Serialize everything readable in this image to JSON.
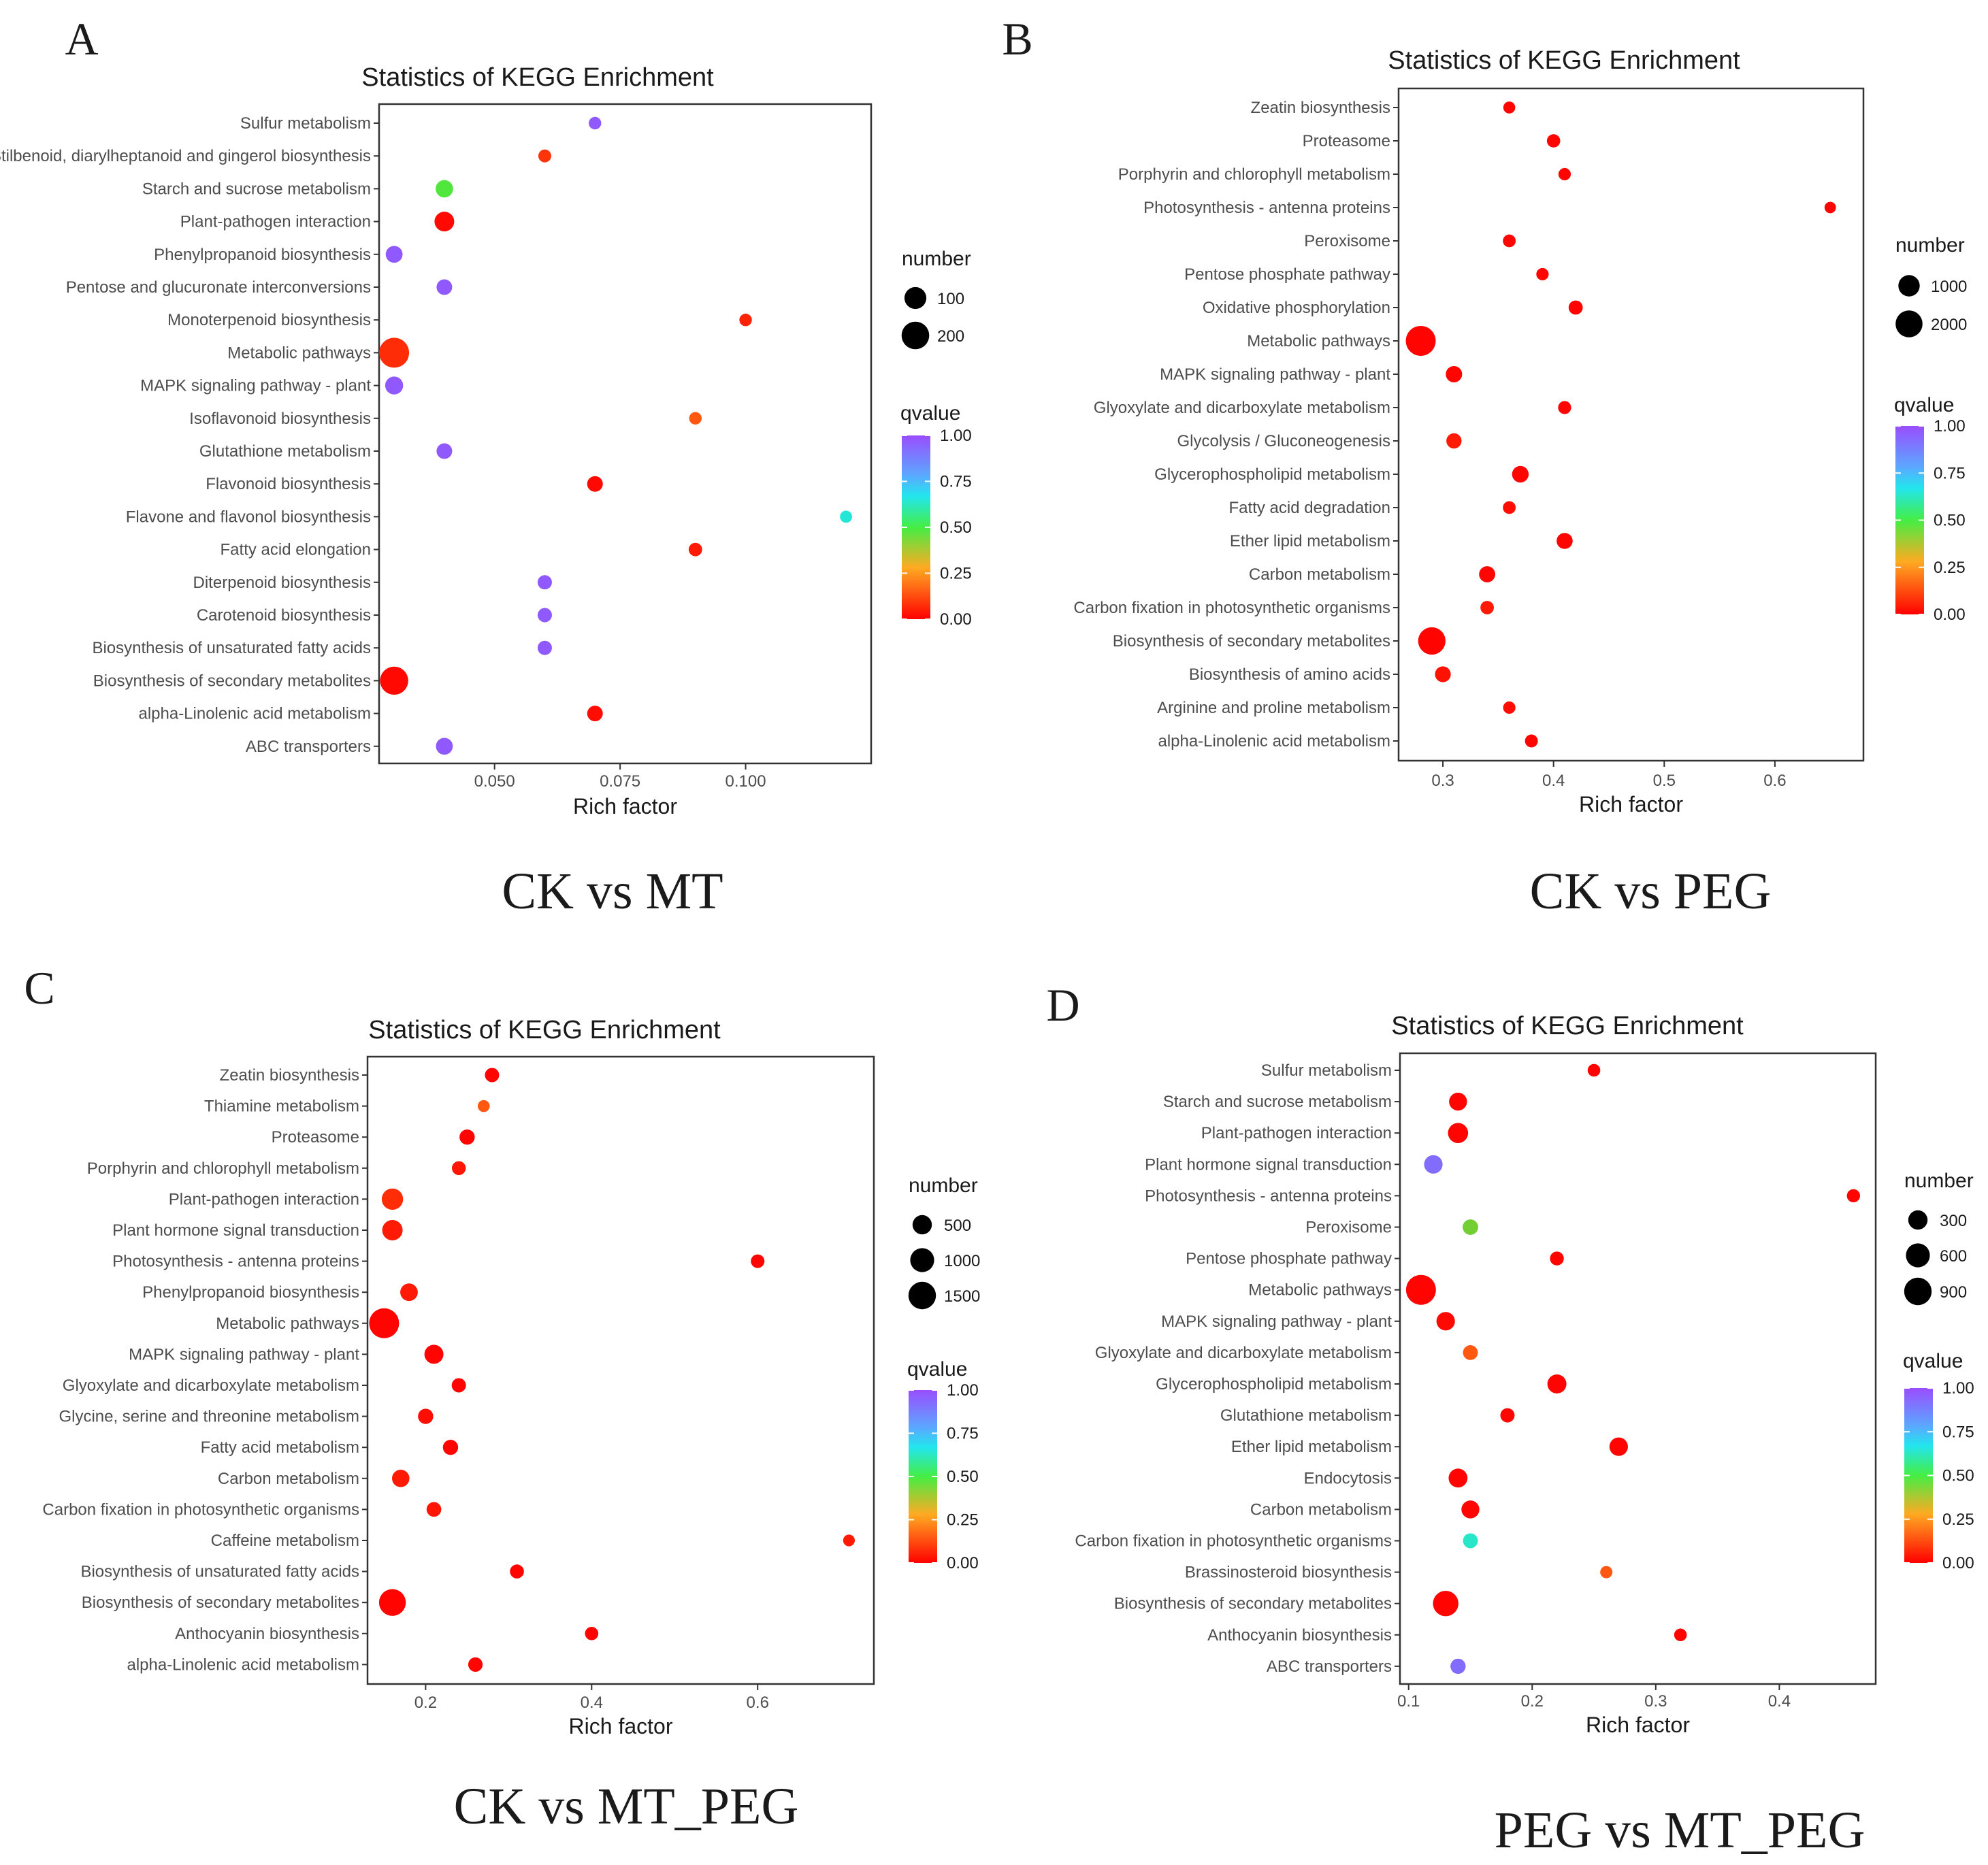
{
  "colors": {
    "low": "#ff0000",
    "high": "#9a4dff",
    "frame": "#333333"
  },
  "chart_data": [
    {
      "type": "scatter",
      "panel": "A",
      "comparison": "CK vs MT",
      "title": "Statistics of KEGG Enrichment",
      "xlabel": "Rich factor",
      "xlim": [
        0.027,
        0.125
      ],
      "xticks": [
        0.05,
        0.075,
        0.1
      ],
      "xtick_labels": [
        "0.050",
        "0.075",
        "0.100"
      ],
      "categories": [
        "Sulfur metabolism",
        "Stilbenoid, diarylheptanoid and gingerol biosynthesis",
        "Starch and sucrose metabolism",
        "Plant-pathogen interaction",
        "Phenylpropanoid biosynthesis",
        "Pentose and glucuronate interconversions",
        "Monoterpenoid biosynthesis",
        "Metabolic pathways",
        "MAPK signaling pathway - plant",
        "Isoflavonoid biosynthesis",
        "Glutathione metabolism",
        "Flavonoid biosynthesis",
        "Flavone and flavonol biosynthesis",
        "Fatty acid elongation",
        "Diterpenoid biosynthesis",
        "Carotenoid biosynthesis",
        "Biosynthesis of unsaturated fatty acids",
        "Biosynthesis of secondary metabolites",
        "alpha-Linolenic acid metabolism",
        "ABC transporters"
      ],
      "rich_factor": [
        0.07,
        0.06,
        0.04,
        0.04,
        0.03,
        0.04,
        0.1,
        0.03,
        0.03,
        0.09,
        0.04,
        0.07,
        0.12,
        0.09,
        0.06,
        0.06,
        0.06,
        0.03,
        0.07,
        0.04
      ],
      "number": [
        10,
        12,
        45,
        70,
        40,
        30,
        10,
        250,
        50,
        10,
        30,
        30,
        8,
        15,
        20,
        20,
        20,
        210,
        30,
        40
      ],
      "qvalue": [
        0.98,
        0.12,
        0.5,
        0.02,
        0.98,
        0.98,
        0.08,
        0.1,
        0.98,
        0.2,
        0.98,
        0.02,
        0.72,
        0.06,
        0.98,
        0.98,
        0.98,
        0.02,
        0.03,
        0.98
      ],
      "size_legend": {
        "title": "number",
        "values": [
          100,
          200
        ]
      },
      "color_legend": {
        "title": "qvalue",
        "ticks": [
          "1.00",
          "0.75",
          "0.50",
          "0.25",
          "0.00"
        ]
      }
    },
    {
      "type": "scatter",
      "panel": "B",
      "comparison": "CK vs PEG",
      "title": "Statistics of KEGG Enrichment",
      "xlabel": "Rich factor",
      "xlim": [
        0.26,
        0.68
      ],
      "xticks": [
        0.3,
        0.4,
        0.5,
        0.6
      ],
      "xtick_labels": [
        "0.3",
        "0.4",
        "0.5",
        "0.6"
      ],
      "categories": [
        "Zeatin biosynthesis",
        "Proteasome",
        "Porphyrin and chlorophyll metabolism",
        "Photosynthesis - antenna proteins",
        "Peroxisome",
        "Pentose phosphate pathway",
        "Oxidative phosphorylation",
        "Metabolic pathways",
        "MAPK signaling pathway - plant",
        "Glyoxylate and dicarboxylate metabolism",
        "Glycolysis / Gluconeogenesis",
        "Glycerophospholipid metabolism",
        "Fatty acid degradation",
        "Ether lipid metabolism",
        "Carbon metabolism",
        "Carbon fixation in photosynthetic organisms",
        "Biosynthesis of secondary metabolites",
        "Biosynthesis of amino acids",
        "Arginine and proline metabolism",
        "alpha-Linolenic acid metabolism"
      ],
      "rich_factor": [
        0.36,
        0.4,
        0.41,
        0.65,
        0.36,
        0.39,
        0.42,
        0.28,
        0.31,
        0.41,
        0.31,
        0.37,
        0.36,
        0.41,
        0.34,
        0.34,
        0.29,
        0.3,
        0.36,
        0.38
      ],
      "number": [
        80,
        150,
        100,
        60,
        120,
        100,
        200,
        2700,
        380,
        140,
        280,
        400,
        120,
        360,
        370,
        160,
        2100,
        330,
        100,
        130
      ],
      "qvalue": [
        0.01,
        0.01,
        0.01,
        0.01,
        0.01,
        0.01,
        0.01,
        0.01,
        0.01,
        0.01,
        0.06,
        0.01,
        0.03,
        0.01,
        0.01,
        0.06,
        0.01,
        0.04,
        0.03,
        0.01
      ],
      "size_legend": {
        "title": "number",
        "values": [
          1000,
          2000
        ]
      },
      "color_legend": {
        "title": "qvalue",
        "ticks": [
          "1.00",
          "0.75",
          "0.50",
          "0.25",
          "0.00"
        ]
      }
    },
    {
      "type": "scatter",
      "panel": "C",
      "comparison": "CK vs MT_PEG",
      "title": "Statistics of KEGG Enrichment",
      "xlabel": "Rich factor",
      "xlim": [
        0.13,
        0.74
      ],
      "xticks": [
        0.2,
        0.4,
        0.6
      ],
      "xtick_labels": [
        "0.2",
        "0.4",
        "0.6"
      ],
      "categories": [
        "Zeatin biosynthesis",
        "Thiamine metabolism",
        "Proteasome",
        "Porphyrin and chlorophyll metabolism",
        "Plant-pathogen interaction",
        "Plant hormone signal transduction",
        "Photosynthesis - antenna proteins",
        "Phenylpropanoid biosynthesis",
        "Metabolic pathways",
        "MAPK signaling pathway - plant",
        "Glyoxylate and dicarboxylate metabolism",
        "Glycine, serine and threonine metabolism",
        "Fatty acid metabolism",
        "Carbon metabolism",
        "Carbon fixation in photosynthetic organisms",
        "Caffeine metabolism",
        "Biosynthesis of unsaturated fatty acids",
        "Biosynthesis of secondary metabolites",
        "Anthocyanin biosynthesis",
        "alpha-Linolenic acid metabolism"
      ],
      "rich_factor": [
        0.28,
        0.27,
        0.25,
        0.24,
        0.16,
        0.16,
        0.6,
        0.18,
        0.15,
        0.21,
        0.24,
        0.2,
        0.23,
        0.17,
        0.21,
        0.71,
        0.31,
        0.16,
        0.4,
        0.26
      ],
      "number": [
        150,
        60,
        200,
        130,
        700,
        600,
        120,
        350,
        1900,
        470,
        150,
        200,
        200,
        340,
        170,
        50,
        140,
        1400,
        110,
        160
      ],
      "qvalue": [
        0.01,
        0.2,
        0.01,
        0.05,
        0.1,
        0.06,
        0.01,
        0.06,
        0.01,
        0.01,
        0.01,
        0.03,
        0.01,
        0.06,
        0.05,
        0.06,
        0.01,
        0.01,
        0.01,
        0.01
      ],
      "size_legend": {
        "title": "number",
        "values": [
          500,
          1000,
          1500
        ]
      },
      "color_legend": {
        "title": "qvalue",
        "ticks": [
          "1.00",
          "0.75",
          "0.50",
          "0.25",
          "0.00"
        ]
      }
    },
    {
      "type": "scatter",
      "panel": "D",
      "comparison": "PEG vs MT_PEG",
      "title": "Statistics of KEGG Enrichment",
      "xlabel": "Rich factor",
      "xlim": [
        0.093,
        0.478
      ],
      "xticks": [
        0.1,
        0.2,
        0.3,
        0.4
      ],
      "xtick_labels": [
        "0.1",
        "0.2",
        "0.3",
        "0.4"
      ],
      "categories": [
        "Sulfur metabolism",
        "Starch and sucrose metabolism",
        "Plant-pathogen interaction",
        "Plant hormone signal transduction",
        "Photosynthesis - antenna proteins",
        "Peroxisome",
        "Pentose phosphate pathway",
        "Metabolic pathways",
        "MAPK signaling pathway - plant",
        "Glyoxylate and dicarboxylate metabolism",
        "Glycerophospholipid metabolism",
        "Glutathione metabolism",
        "Ether lipid metabolism",
        "Endocytosis",
        "Carbon metabolism",
        "Carbon fixation in photosynthetic organisms",
        "Brassinosteroid biosynthesis",
        "Biosynthesis of secondary metabolites",
        "Anthocyanin biosynthesis",
        "ABC transporters"
      ],
      "rich_factor": [
        0.25,
        0.14,
        0.14,
        0.12,
        0.46,
        0.15,
        0.22,
        0.11,
        0.13,
        0.15,
        0.22,
        0.18,
        0.27,
        0.14,
        0.15,
        0.15,
        0.26,
        0.13,
        0.32,
        0.14
      ],
      "number": [
        50,
        230,
        350,
        260,
        60,
        130,
        80,
        1150,
        260,
        110,
        290,
        90,
        260,
        280,
        230,
        110,
        40,
        720,
        50,
        120
      ],
      "qvalue": [
        0.01,
        0.01,
        0.01,
        0.95,
        0.01,
        0.45,
        0.01,
        0.01,
        0.02,
        0.2,
        0.01,
        0.01,
        0.01,
        0.01,
        0.01,
        0.7,
        0.2,
        0.01,
        0.01,
        0.95
      ],
      "size_legend": {
        "title": "number",
        "values": [
          300,
          600,
          900
        ]
      },
      "color_legend": {
        "title": "qvalue",
        "ticks": [
          "1.00",
          "0.75",
          "0.50",
          "0.25",
          "0.00"
        ]
      }
    }
  ]
}
